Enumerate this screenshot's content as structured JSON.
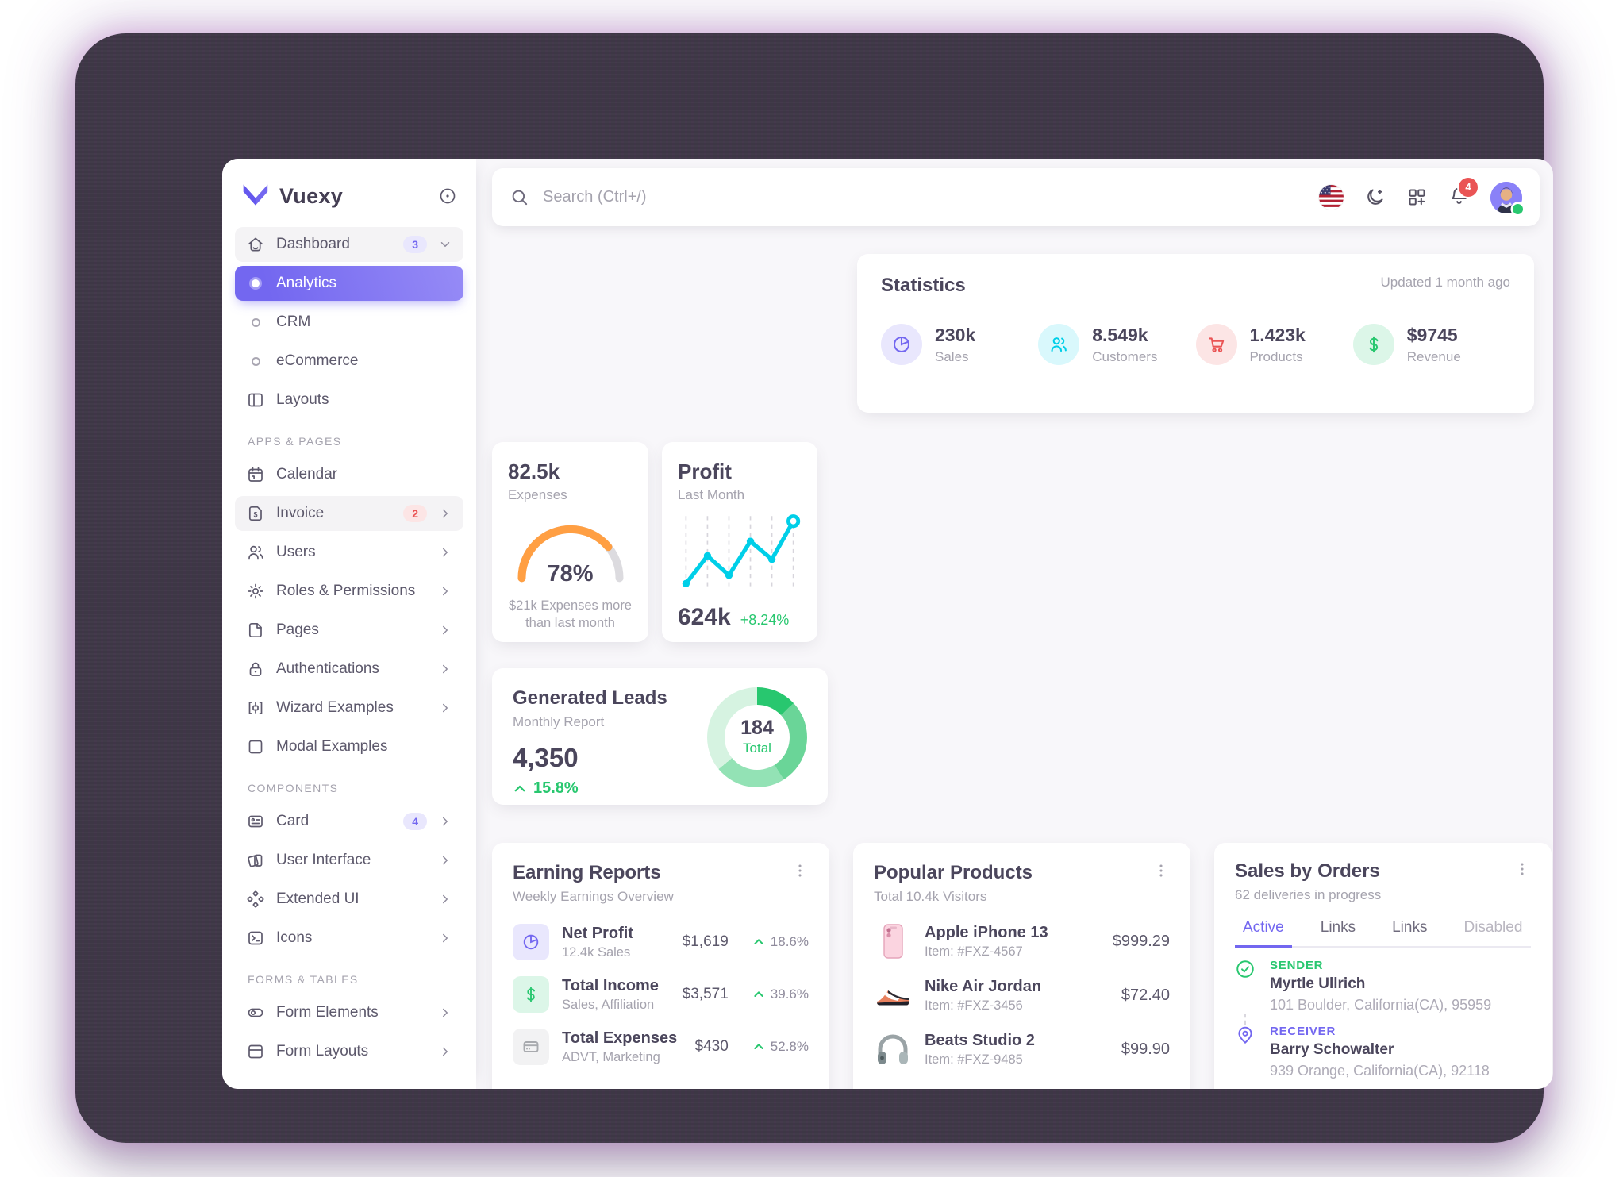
{
  "brand": {
    "name": "Vuexy"
  },
  "sidebar": {
    "sections": {
      "apps": "APPS & PAGES",
      "components": "COMPONENTS",
      "forms": "FORMS & TABLES"
    },
    "items": [
      {
        "label": "Dashboard",
        "icon": "home-icon",
        "badge": "3"
      },
      {
        "label": "Analytics",
        "icon": "circle-icon",
        "active": true
      },
      {
        "label": "CRM",
        "icon": "circle-icon"
      },
      {
        "label": "eCommerce",
        "icon": "circle-icon"
      },
      {
        "label": "Layouts",
        "icon": "layout-icon"
      },
      {
        "label": "Calendar",
        "icon": "calendar-icon"
      },
      {
        "label": "Invoice",
        "icon": "file-dollar-icon",
        "badge": "2"
      },
      {
        "label": "Users",
        "icon": "users-icon"
      },
      {
        "label": "Roles & Permissions",
        "icon": "gear-icon"
      },
      {
        "label": "Pages",
        "icon": "file-icon"
      },
      {
        "label": "Authentications",
        "icon": "lock-icon"
      },
      {
        "label": "Wizard Examples",
        "icon": "wizard-icon"
      },
      {
        "label": "Modal Examples",
        "icon": "square-icon"
      },
      {
        "label": "Card",
        "icon": "id-card-icon",
        "badge": "4"
      },
      {
        "label": "User Interface",
        "icon": "ui-cards-icon"
      },
      {
        "label": "Extended UI",
        "icon": "diamonds-icon"
      },
      {
        "label": "Icons",
        "icon": "terminal-icon"
      },
      {
        "label": "Form Elements",
        "icon": "toggle-icon"
      },
      {
        "label": "Form Layouts",
        "icon": "layout-top-icon"
      }
    ]
  },
  "topbar": {
    "search_placeholder": "Search (Ctrl+/)",
    "notification_count": "4"
  },
  "statistics": {
    "title": "Statistics",
    "updated": "Updated 1 month ago",
    "items": [
      {
        "value": "230k",
        "label": "Sales",
        "icon": "pie-chart-icon",
        "color": "#7367f0"
      },
      {
        "value": "8.549k",
        "label": "Customers",
        "icon": "users-icon",
        "color": "#00cfe8"
      },
      {
        "value": "1.423k",
        "label": "Products",
        "icon": "cart-icon",
        "color": "#ea5455"
      },
      {
        "value": "$9745",
        "label": "Revenue",
        "icon": "dollar-icon",
        "color": "#28c76f"
      }
    ]
  },
  "expenses_card": {
    "value": "82.5k",
    "label": "Expenses",
    "percent_label": "78%",
    "caption": "$21k Expenses more than last month",
    "chart_data": {
      "type": "gauge",
      "value": 78,
      "max": 100,
      "color": "#ff9f43",
      "track_color": "#dcdbdf"
    }
  },
  "profit_card": {
    "title": "Profit",
    "subtitle": "Last Month",
    "value": "624k",
    "change": "+8.24%",
    "chart_data": {
      "type": "line",
      "categories": [
        1,
        2,
        3,
        4,
        5,
        6
      ],
      "values": [
        5,
        45,
        17,
        66,
        40,
        95
      ],
      "color": "#00cfe8",
      "grid": "dashed-vertical",
      "last_point_ring": true
    }
  },
  "generated_leads": {
    "title": "Generated Leads",
    "subtitle": "Monthly Report",
    "value": "4,350",
    "change": "15.8%",
    "chart_data": {
      "type": "donut",
      "center_value": "184",
      "center_label": "Total",
      "segments": [
        {
          "value": 13,
          "color": "#28c76f"
        },
        {
          "value": 28,
          "color": "#6ad598"
        },
        {
          "value": 23,
          "color": "#93e2b5"
        },
        {
          "value": 36,
          "color": "#d6f3e1"
        }
      ]
    }
  },
  "earning_reports": {
    "title": "Earning Reports",
    "subtitle": "Weekly Earnings Overview",
    "rows": [
      {
        "title": "Net Profit",
        "subtitle": "12.4k Sales",
        "amount": "$1,619",
        "change": "18.6%",
        "icon": "pie-chart-icon",
        "color": "#7367f0"
      },
      {
        "title": "Total Income",
        "subtitle": "Sales, Affiliation",
        "amount": "$3,571",
        "change": "39.6%",
        "icon": "dollar-icon",
        "color": "#28c76f"
      },
      {
        "title": "Total Expenses",
        "subtitle": "ADVT, Marketing",
        "amount": "$430",
        "change": "52.8%",
        "icon": "credit-card-icon",
        "color": "#a8aaae"
      }
    ]
  },
  "popular_products": {
    "title": "Popular Products",
    "subtitle": "Total 10.4k Visitors",
    "rows": [
      {
        "name": "Apple iPhone 13",
        "item": "Item: #FXZ-4567",
        "price": "$999.29",
        "image": "iphone-pink"
      },
      {
        "name": "Nike Air Jordan",
        "item": "Item: #FXZ-3456",
        "price": "$72.40",
        "image": "sneaker-orange"
      },
      {
        "name": "Beats Studio 2",
        "item": "Item: #FXZ-9485",
        "price": "$99.90",
        "image": "headphones-gray"
      }
    ]
  },
  "sales_by_orders": {
    "title": "Sales by Orders",
    "subtitle": "62 deliveries in progress",
    "tabs": [
      {
        "label": "Active",
        "state": "active"
      },
      {
        "label": "Links",
        "state": "normal"
      },
      {
        "label": "Links",
        "state": "normal"
      },
      {
        "label": "Disabled",
        "state": "disabled"
      }
    ],
    "sender": {
      "label": "SENDER",
      "name": "Myrtle Ullrich",
      "address": "101 Boulder, California(CA), 95959"
    },
    "receiver": {
      "label": "RECEIVER",
      "name": "Barry Schowalter",
      "address": "939 Orange, California(CA), 92118"
    }
  },
  "colors": {
    "primary": "#7367f0",
    "success": "#28c76f",
    "danger": "#ea5455",
    "warning": "#ff9f43",
    "info": "#00cfe8",
    "background": "#f8f7fa"
  }
}
